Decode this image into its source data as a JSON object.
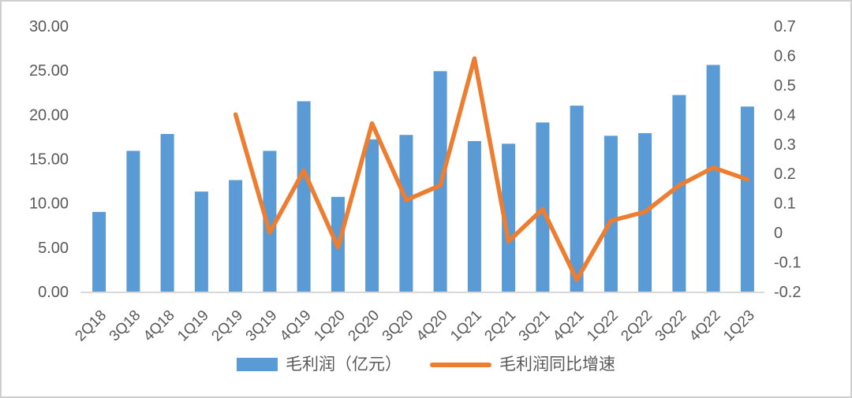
{
  "chart_data": {
    "type": "combo-bar-line",
    "title": "",
    "categories": [
      "2Q18",
      "3Q18",
      "4Q18",
      "1Q19",
      "2Q19",
      "3Q19",
      "4Q19",
      "1Q20",
      "2Q20",
      "3Q20",
      "4Q20",
      "1Q21",
      "2Q21",
      "3Q21",
      "4Q21",
      "1Q22",
      "2Q22",
      "3Q22",
      "4Q22",
      "1Q23"
    ],
    "series": [
      {
        "name": "毛利润（亿元）",
        "type": "bar",
        "axis": "left",
        "color": "#5B9BD5",
        "values": [
          9.0,
          15.9,
          17.8,
          11.3,
          12.6,
          15.9,
          21.5,
          10.7,
          17.2,
          17.7,
          24.9,
          17.0,
          16.7,
          19.1,
          21.0,
          17.6,
          17.9,
          22.2,
          25.6,
          20.9
        ]
      },
      {
        "name": "毛利润同比增速",
        "type": "line",
        "axis": "right",
        "color": "#ED7D31",
        "values": [
          null,
          null,
          null,
          null,
          0.4,
          0.0,
          0.21,
          -0.05,
          0.37,
          0.11,
          0.16,
          0.59,
          -0.03,
          0.08,
          -0.16,
          0.04,
          0.07,
          0.16,
          0.22,
          0.18
        ]
      }
    ],
    "left_axis": {
      "min": 0,
      "max": 30,
      "ticks": [
        "30.00",
        "25.00",
        "20.00",
        "15.00",
        "10.00",
        "5.00",
        "0.00"
      ],
      "tick_values": [
        30,
        25,
        20,
        15,
        10,
        5,
        0
      ]
    },
    "right_axis": {
      "min": -0.2,
      "max": 0.7,
      "ticks": [
        "0.7",
        "0.6",
        "0.5",
        "0.4",
        "0.3",
        "0.2",
        "0.1",
        "0",
        "-0.1",
        "-0.2"
      ],
      "tick_values": [
        0.7,
        0.6,
        0.5,
        0.4,
        0.3,
        0.2,
        0.1,
        0,
        -0.1,
        -0.2
      ]
    },
    "legend_position": "bottom",
    "grid": false,
    "x_label_rotation_deg": -45,
    "colors": {
      "bar": "#5B9BD5",
      "line": "#ED7D31",
      "text": "#595959",
      "axis_line": "#D9D9D9",
      "frame_border": "#CFCFCF",
      "background": "#FFFFFF"
    }
  }
}
